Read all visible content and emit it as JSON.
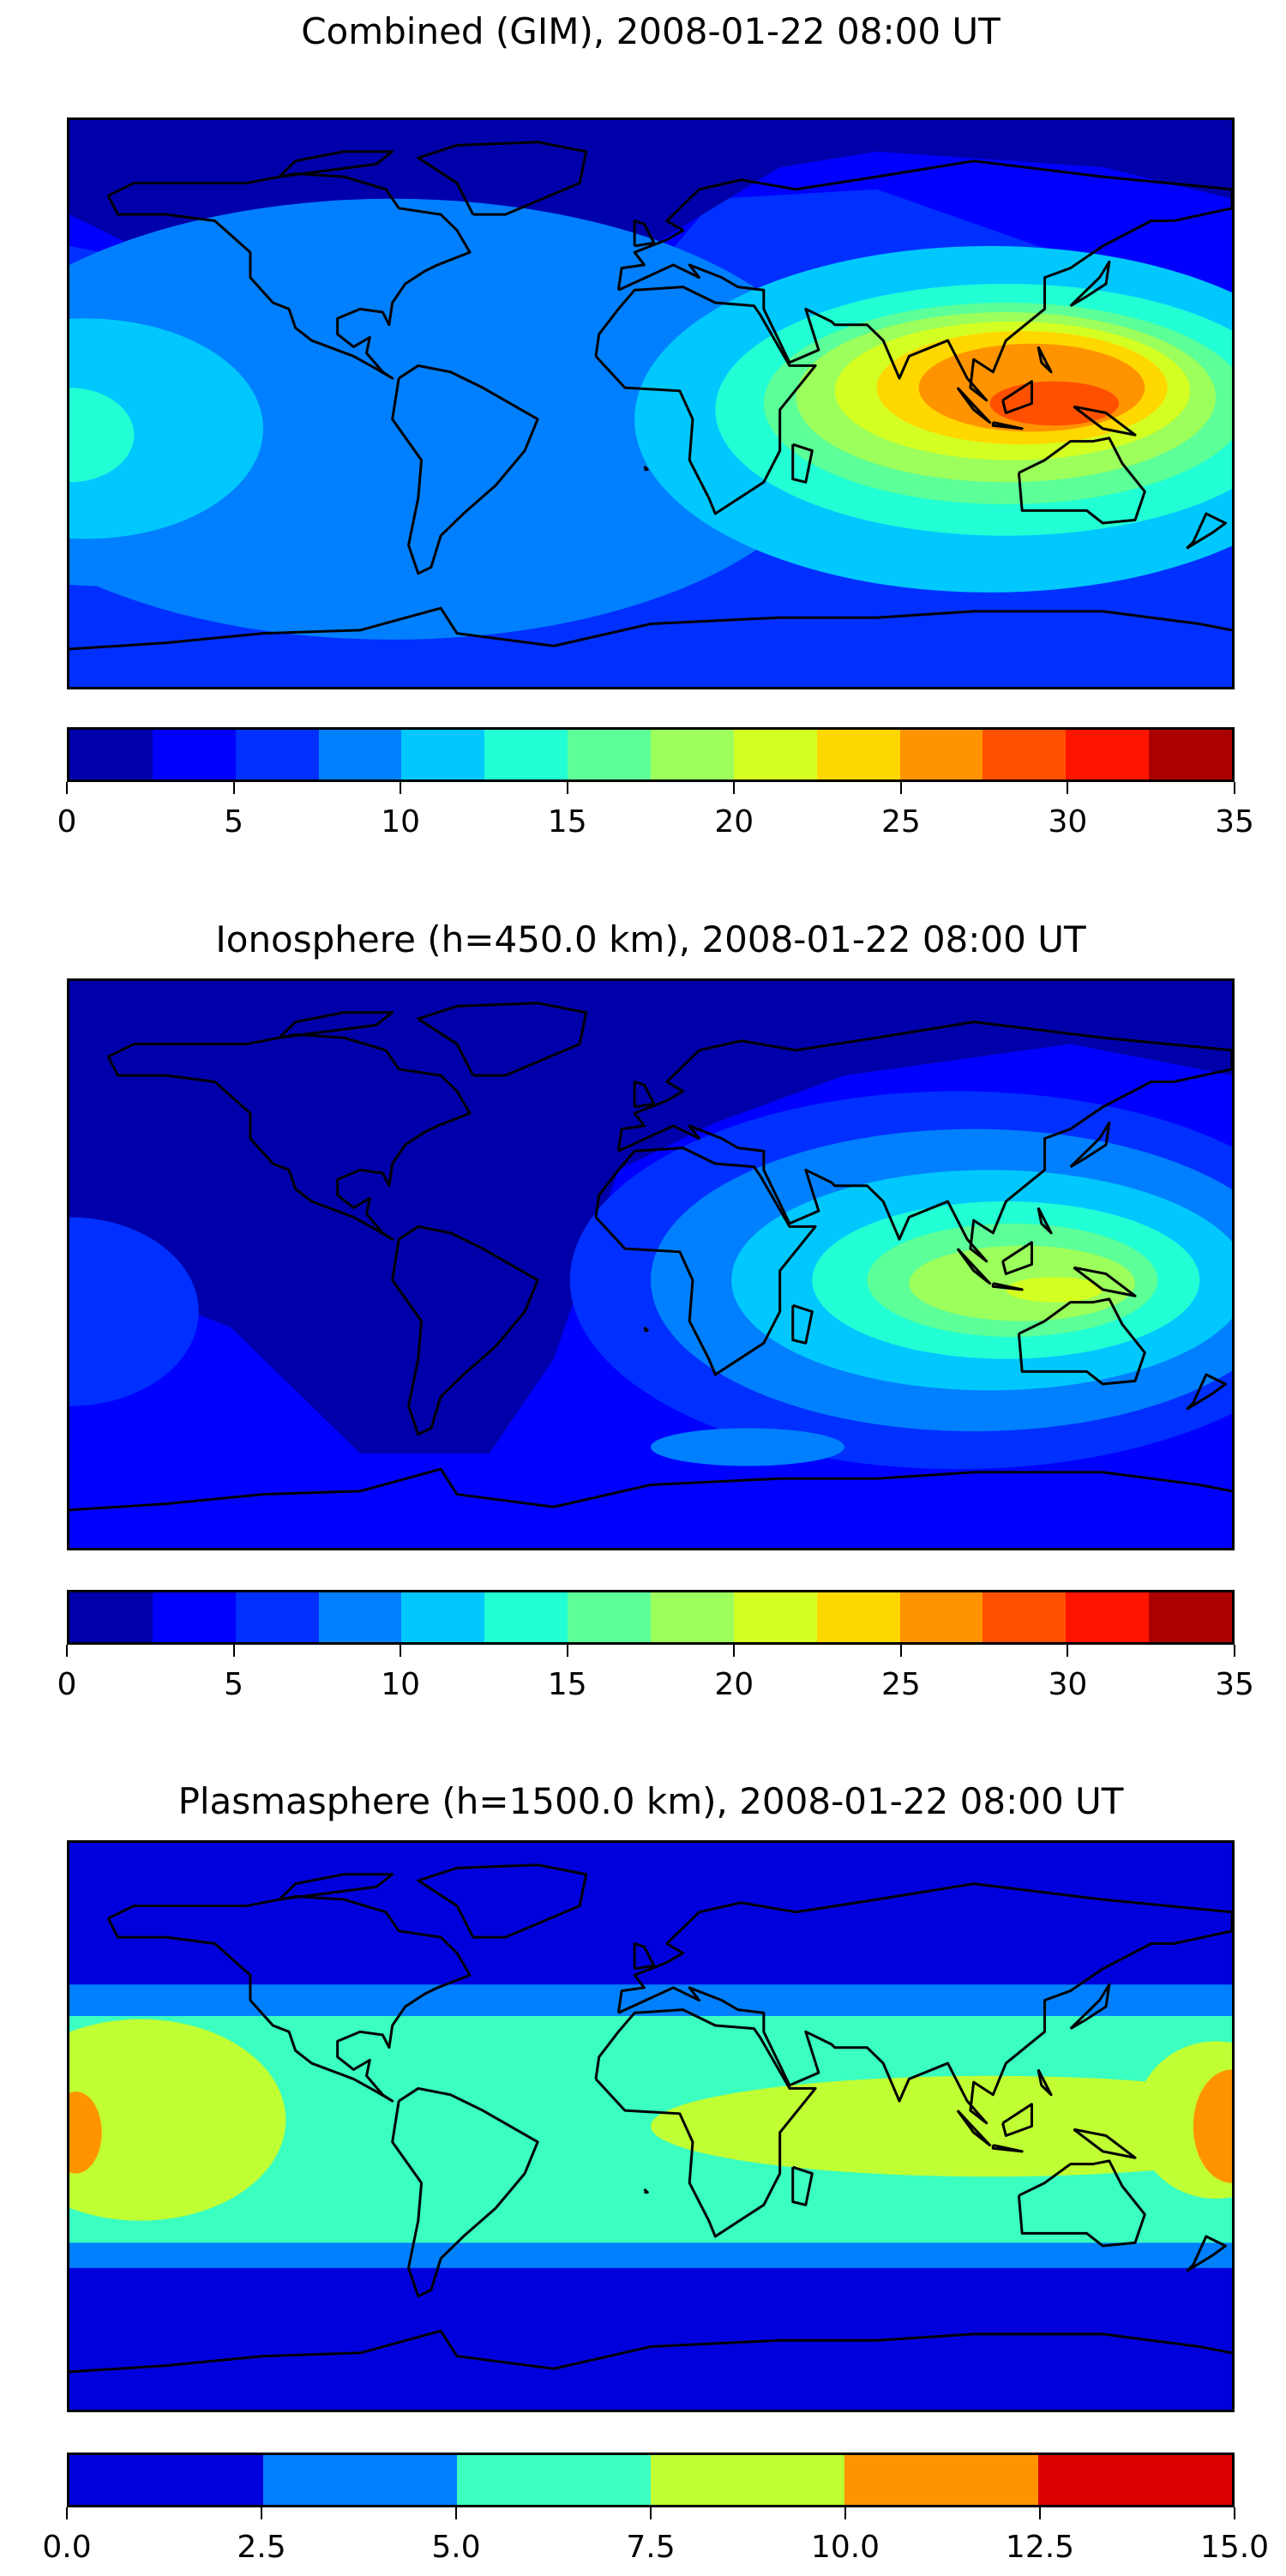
{
  "panels": [
    {
      "title": "Combined (GIM), 2008-01-22 08:00 UT",
      "colorbar": {
        "colors": [
          "#0000aa",
          "#0000ff",
          "#0030ff",
          "#0080ff",
          "#00c8ff",
          "#22ffd4",
          "#5cff98",
          "#9cff5c",
          "#d4ff22",
          "#ffd800",
          "#ff9400",
          "#ff5000",
          "#ff1400",
          "#aa0000"
        ],
        "ticks": [
          "0",
          "5",
          "10",
          "15",
          "20",
          "25",
          "30",
          "35"
        ],
        "range": [
          0,
          35
        ],
        "step": 2.5
      }
    },
    {
      "title": "Ionosphere  (h=450.0 km), 2008-01-22 08:00 UT",
      "colorbar": {
        "colors": [
          "#0000aa",
          "#0000ff",
          "#0030ff",
          "#0080ff",
          "#00c8ff",
          "#22ffd4",
          "#5cff98",
          "#9cff5c",
          "#d4ff22",
          "#ffd800",
          "#ff9400",
          "#ff5000",
          "#ff1400",
          "#aa0000"
        ],
        "ticks": [
          "0",
          "5",
          "10",
          "15",
          "20",
          "25",
          "30",
          "35"
        ],
        "range": [
          0,
          35
        ],
        "step": 2.5
      }
    },
    {
      "title": "Plasmasphere (h=1500.0 km), 2008-01-22 08:00 UT",
      "colorbar": {
        "colors": [
          "#0000dd",
          "#0080ff",
          "#3affc0",
          "#c0ff33",
          "#ff9400",
          "#dd0000"
        ],
        "ticks": [
          "0.0",
          "2.5",
          "5.0",
          "7.5",
          "10.0",
          "12.5",
          "15.0"
        ],
        "range": [
          0,
          15
        ],
        "step": 2.5
      }
    }
  ],
  "chart_data": [
    {
      "type": "heatmap",
      "title": "Combined (GIM), 2008-01-22 08:00 UT",
      "colorbar_levels": [
        0,
        2.5,
        5,
        7.5,
        10,
        12.5,
        15,
        17.5,
        20,
        22.5,
        25,
        27.5,
        30,
        32.5,
        35
      ],
      "peak_region": "Southeast Asia / Indonesia",
      "peak_level_range": [
        27.5,
        30
      ]
    },
    {
      "type": "heatmap",
      "title": "Ionosphere  (h=450.0 km), 2008-01-22 08:00 UT",
      "colorbar_levels": [
        0,
        2.5,
        5,
        7.5,
        10,
        12.5,
        15,
        17.5,
        20,
        22.5,
        25,
        27.5,
        30,
        32.5,
        35
      ],
      "peak_region": "Indonesia",
      "peak_level_range": [
        20,
        22.5
      ]
    },
    {
      "type": "heatmap",
      "title": "Plasmasphere (h=1500.0 km), 2008-01-22 08:00 UT",
      "colorbar_levels": [
        0,
        2.5,
        5,
        7.5,
        10,
        12.5,
        15
      ],
      "peak_region": "Date line, equator",
      "peak_level_range": [
        10,
        12.5
      ]
    }
  ]
}
